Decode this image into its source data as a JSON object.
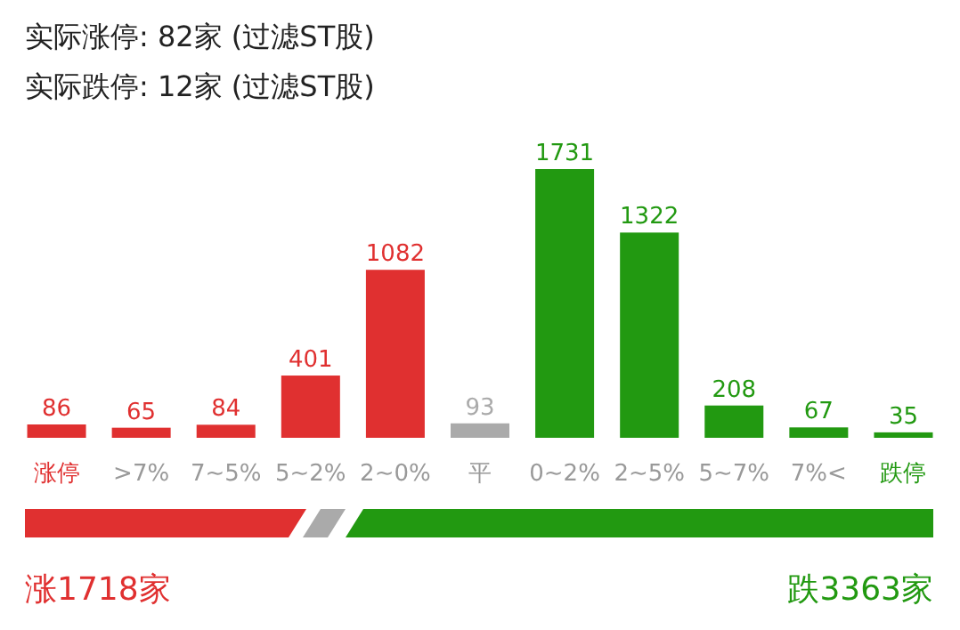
{
  "chart_data": {
    "type": "bar",
    "title": "实际涨停: 82家 (过滤ST股)",
    "subtitle": "实际跌停: 12家 (过滤ST股)",
    "categories": [
      "涨停",
      ">7%",
      "7~5%",
      "5~2%",
      "2~0%",
      "平",
      "0~2%",
      "2~5%",
      "5~7%",
      "7%<",
      "跌停"
    ],
    "values": [
      86,
      65,
      84,
      401,
      1082,
      93,
      1731,
      1322,
      208,
      67,
      35
    ],
    "colors": [
      "#e03030",
      "#e03030",
      "#e03030",
      "#e03030",
      "#e03030",
      "#aaaaaa",
      "#229911",
      "#229911",
      "#229911",
      "#229911",
      "#229911"
    ],
    "data_labels": true,
    "annotations": [
      "涨1718家",
      "跌3363家"
    ]
  }
}
